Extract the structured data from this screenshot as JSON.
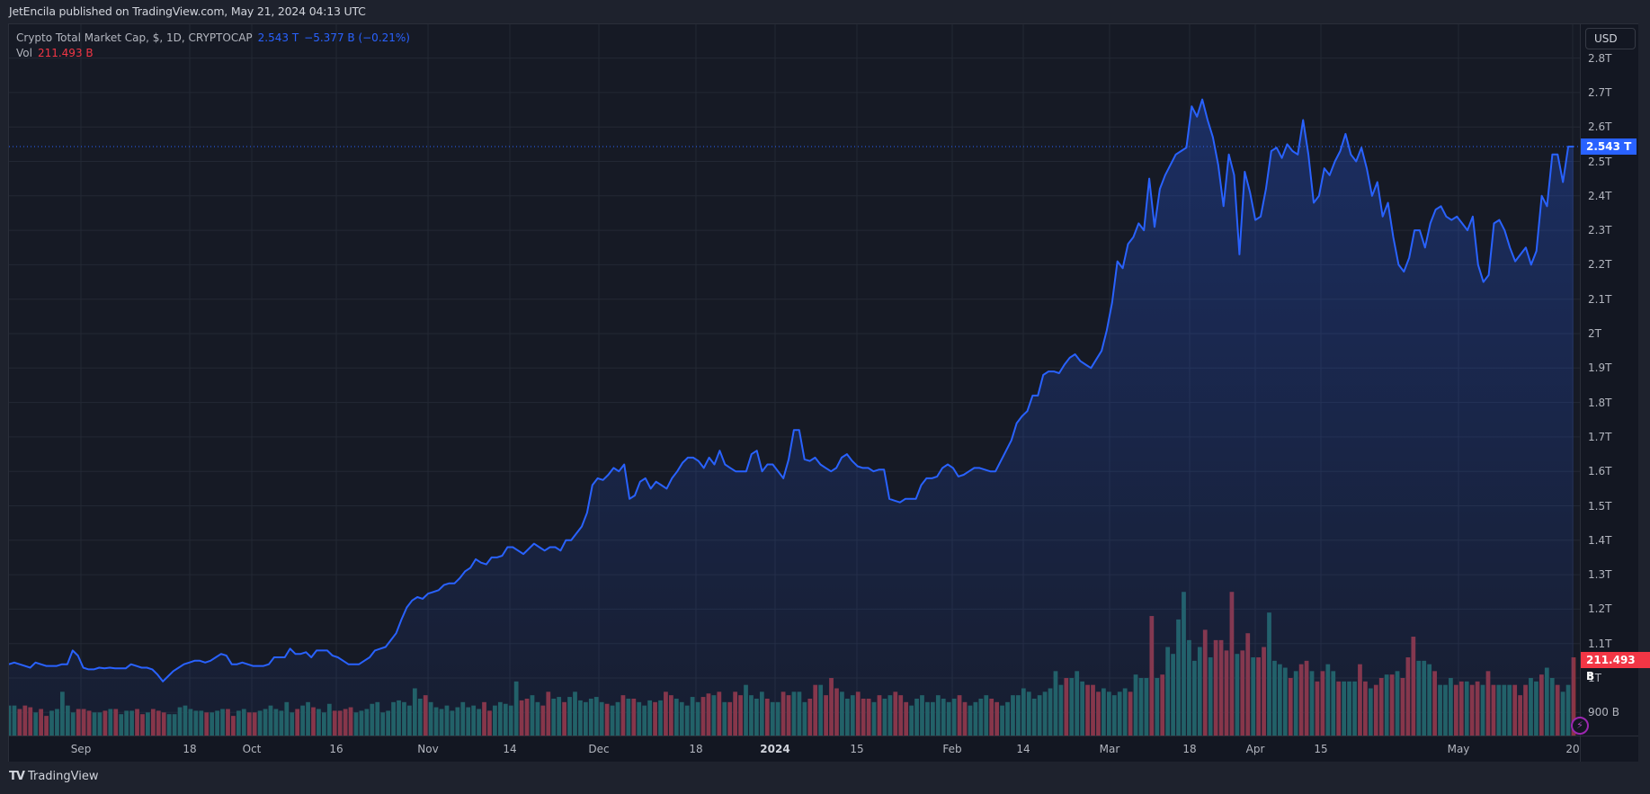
{
  "header": {
    "publish_line": "JetEncila published on TradingView.com, May 21, 2024 04:13 UTC"
  },
  "legend": {
    "symbol": "Crypto Total Market Cap, $, 1D, CRYPTOCAP",
    "last": "2.543 T",
    "change": "−5.377 B (−0.21%)",
    "vol_label": "Vol",
    "vol_value": "211.493 B"
  },
  "currency_button": "USD",
  "price_label": {
    "text": "2.543 T",
    "color": "#2962ff"
  },
  "volume_label": {
    "text": "211.493 B",
    "color": "#f23645"
  },
  "footer": {
    "brand": "TradingView",
    "logo": "TV"
  },
  "colors": {
    "line": "#2962ff",
    "up_volume": "#22615f",
    "down_volume": "#8c3440",
    "background": "#131722"
  },
  "chart_data": {
    "type": "area",
    "title": "Crypto Total Market Cap, $, 1D, CRYPTOCAP",
    "xlabel": "",
    "ylabel": "USD",
    "ylim": [
      0.87,
      2.83
    ],
    "grid": true,
    "legend_position": "top-left",
    "y_ticks": [
      "2.8T",
      "2.7T",
      "2.6T",
      "2.5T",
      "2.4T",
      "2.3T",
      "2.2T",
      "2.1T",
      "2T",
      "1.9T",
      "1.8T",
      "1.7T",
      "1.6T",
      "1.5T",
      "1.4T",
      "1.3T",
      "1.2T",
      "1.1T",
      "1T",
      "900 B"
    ],
    "x_ticks": [
      "Sep",
      "18",
      "Oct",
      "16",
      "Nov",
      "14",
      "Dec",
      "18",
      "2024",
      "15",
      "Feb",
      "14",
      "Mar",
      "18",
      "Apr",
      "15",
      "May",
      "20"
    ],
    "last_value": 2.543,
    "series": [
      {
        "name": "Total Market Cap (T)",
        "values": [
          1.04,
          1.045,
          1.04,
          1.035,
          1.03,
          1.045,
          1.04,
          1.035,
          1.035,
          1.035,
          1.04,
          1.04,
          1.08,
          1.065,
          1.03,
          1.025,
          1.025,
          1.03,
          1.028,
          1.03,
          1.028,
          1.028,
          1.028,
          1.04,
          1.035,
          1.03,
          1.03,
          1.025,
          1.01,
          0.99,
          1.005,
          1.02,
          1.03,
          1.04,
          1.045,
          1.05,
          1.05,
          1.045,
          1.05,
          1.06,
          1.07,
          1.065,
          1.04,
          1.04,
          1.045,
          1.04,
          1.035,
          1.035,
          1.035,
          1.04,
          1.06,
          1.06,
          1.06,
          1.085,
          1.07,
          1.07,
          1.075,
          1.06,
          1.08,
          1.08,
          1.08,
          1.065,
          1.06,
          1.05,
          1.04,
          1.04,
          1.04,
          1.05,
          1.06,
          1.08,
          1.085,
          1.09,
          1.11,
          1.13,
          1.17,
          1.205,
          1.225,
          1.235,
          1.23,
          1.245,
          1.25,
          1.255,
          1.27,
          1.275,
          1.275,
          1.29,
          1.31,
          1.32,
          1.345,
          1.335,
          1.33,
          1.35,
          1.35,
          1.355,
          1.38,
          1.38,
          1.37,
          1.36,
          1.375,
          1.39,
          1.38,
          1.37,
          1.38,
          1.38,
          1.37,
          1.4,
          1.4,
          1.42,
          1.44,
          1.48,
          1.56,
          1.58,
          1.575,
          1.59,
          1.61,
          1.6,
          1.62,
          1.52,
          1.53,
          1.57,
          1.58,
          1.55,
          1.57,
          1.56,
          1.55,
          1.58,
          1.6,
          1.625,
          1.64,
          1.64,
          1.63,
          1.61,
          1.64,
          1.62,
          1.66,
          1.62,
          1.61,
          1.6,
          1.6,
          1.6,
          1.65,
          1.66,
          1.6,
          1.62,
          1.62,
          1.6,
          1.58,
          1.635,
          1.72,
          1.72,
          1.635,
          1.63,
          1.64,
          1.62,
          1.61,
          1.6,
          1.61,
          1.64,
          1.65,
          1.63,
          1.615,
          1.61,
          1.61,
          1.6,
          1.605,
          1.605,
          1.52,
          1.515,
          1.51,
          1.52,
          1.52,
          1.52,
          1.56,
          1.58,
          1.58,
          1.585,
          1.61,
          1.62,
          1.61,
          1.585,
          1.59,
          1.6,
          1.61,
          1.61,
          1.605,
          1.6,
          1.6,
          1.63,
          1.66,
          1.69,
          1.74,
          1.76,
          1.775,
          1.82,
          1.82,
          1.88,
          1.89,
          1.89,
          1.885,
          1.91,
          1.93,
          1.94,
          1.92,
          1.91,
          1.9,
          1.925,
          1.95,
          2.01,
          2.09,
          2.21,
          2.19,
          2.26,
          2.28,
          2.32,
          2.3,
          2.45,
          2.31,
          2.42,
          2.46,
          2.49,
          2.52,
          2.53,
          2.54,
          2.66,
          2.63,
          2.68,
          2.62,
          2.57,
          2.49,
          2.37,
          2.52,
          2.46,
          2.23,
          2.47,
          2.41,
          2.33,
          2.34,
          2.42,
          2.53,
          2.54,
          2.51,
          2.55,
          2.53,
          2.52,
          2.62,
          2.52,
          2.38,
          2.4,
          2.48,
          2.46,
          2.5,
          2.53,
          2.58,
          2.52,
          2.5,
          2.54,
          2.48,
          2.4,
          2.44,
          2.34,
          2.38,
          2.28,
          2.2,
          2.18,
          2.22,
          2.3,
          2.3,
          2.25,
          2.32,
          2.36,
          2.37,
          2.34,
          2.33,
          2.34,
          2.32,
          2.3,
          2.34,
          2.2,
          2.15,
          2.17,
          2.32,
          2.33,
          2.3,
          2.25,
          2.21,
          2.23,
          2.25,
          2.2,
          2.24,
          2.4,
          2.37,
          2.52,
          2.52,
          2.44,
          2.543,
          2.543
        ]
      },
      {
        "name": "Volume",
        "type": "bar",
        "values": [
          0.92,
          0.92,
          0.91,
          0.92,
          0.915,
          0.9,
          0.91,
          0.89,
          0.905,
          0.91,
          0.96,
          0.92,
          0.9,
          0.91,
          0.91,
          0.905,
          0.9,
          0.9,
          0.905,
          0.91,
          0.91,
          0.895,
          0.905,
          0.905,
          0.91,
          0.895,
          0.9,
          0.91,
          0.905,
          0.9,
          0.895,
          0.895,
          0.915,
          0.92,
          0.91,
          0.905,
          0.905,
          0.9,
          0.9,
          0.905,
          0.91,
          0.91,
          0.89,
          0.905,
          0.91,
          0.9,
          0.9,
          0.905,
          0.91,
          0.92,
          0.91,
          0.905,
          0.93,
          0.9,
          0.91,
          0.92,
          0.93,
          0.915,
          0.91,
          0.9,
          0.925,
          0.905,
          0.905,
          0.91,
          0.915,
          0.9,
          0.905,
          0.91,
          0.925,
          0.93,
          0.9,
          0.905,
          0.93,
          0.935,
          0.93,
          0.92,
          0.97,
          0.94,
          0.95,
          0.93,
          0.915,
          0.91,
          0.92,
          0.905,
          0.915,
          0.93,
          0.915,
          0.92,
          0.91,
          0.93,
          0.905,
          0.92,
          0.93,
          0.925,
          0.92,
          0.99,
          0.935,
          0.94,
          0.95,
          0.93,
          0.92,
          0.96,
          0.94,
          0.945,
          0.93,
          0.945,
          0.96,
          0.935,
          0.93,
          0.94,
          0.945,
          0.93,
          0.925,
          0.92,
          0.93,
          0.95,
          0.94,
          0.94,
          0.93,
          0.92,
          0.935,
          0.93,
          0.935,
          0.96,
          0.95,
          0.94,
          0.93,
          0.92,
          0.945,
          0.93,
          0.945,
          0.955,
          0.95,
          0.96,
          0.93,
          0.93,
          0.96,
          0.95,
          0.98,
          0.95,
          0.94,
          0.96,
          0.94,
          0.93,
          0.93,
          0.96,
          0.95,
          0.96,
          0.96,
          0.93,
          0.94,
          0.98,
          0.98,
          0.95,
          1.0,
          0.97,
          0.96,
          0.94,
          0.95,
          0.96,
          0.94,
          0.94,
          0.93,
          0.95,
          0.94,
          0.95,
          0.96,
          0.95,
          0.93,
          0.92,
          0.94,
          0.95,
          0.93,
          0.93,
          0.95,
          0.94,
          0.93,
          0.94,
          0.95,
          0.93,
          0.92,
          0.93,
          0.94,
          0.95,
          0.94,
          0.93,
          0.92,
          0.93,
          0.95,
          0.95,
          0.97,
          0.96,
          0.94,
          0.95,
          0.96,
          0.97,
          1.02,
          0.98,
          1.0,
          1.0,
          1.02,
          0.99,
          0.98,
          0.98,
          0.96,
          0.97,
          0.96,
          0.95,
          0.96,
          0.97,
          0.96,
          1.01,
          1.0,
          1.0,
          1.18,
          1.0,
          1.01,
          1.09,
          1.07,
          1.17,
          1.25,
          1.11,
          1.05,
          1.09,
          1.14,
          1.06,
          1.11,
          1.11,
          1.08,
          1.25,
          1.07,
          1.08,
          1.13,
          1.06,
          1.06,
          1.09,
          1.19,
          1.05,
          1.04,
          1.03,
          1.0,
          1.02,
          1.04,
          1.05,
          1.02,
          0.99,
          1.02,
          1.04,
          1.02,
          0.99,
          0.99,
          0.99,
          0.99,
          1.04,
          0.99,
          0.97,
          0.98,
          1.0,
          1.01,
          1.01,
          1.02,
          1.0,
          1.06,
          1.12,
          1.05,
          1.05,
          1.04,
          1.02,
          0.98,
          0.98,
          1.0,
          0.98,
          0.99,
          0.99,
          0.98,
          0.99,
          0.98,
          1.02,
          0.98,
          0.98,
          0.98,
          0.98,
          0.98,
          0.95,
          0.98,
          1.0,
          0.99,
          1.01,
          1.03,
          1.0,
          0.98,
          0.96,
          0.98,
          1.06
        ]
      }
    ]
  }
}
